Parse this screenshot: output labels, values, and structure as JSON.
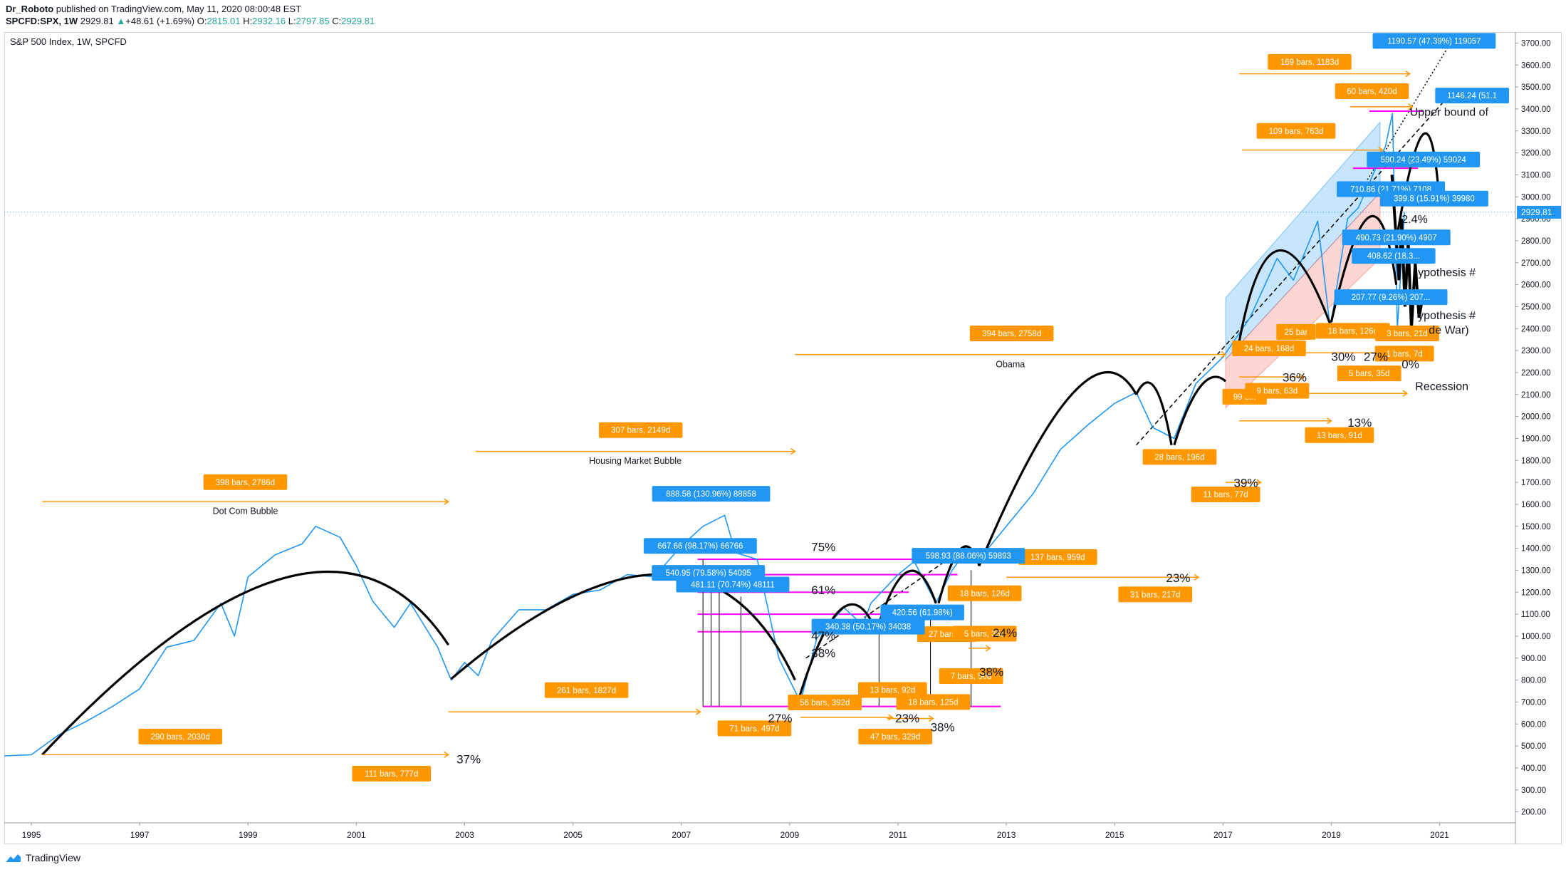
{
  "header": {
    "author": "Dr_Roboto",
    "published": "published on TradingView.com, May 11, 2020 08:00:48 EST",
    "symbol": "SPCFD:SPX, 1W",
    "price": "2929.81",
    "change": "+48.61 (+1.69%)",
    "ohlc_o_label": "O:",
    "ohlc_o": "2815.01",
    "ohlc_h_label": "H:",
    "ohlc_h": "2932.16",
    "ohlc_l_label": "L:",
    "ohlc_l": "2797.85",
    "ohlc_c_label": "C:",
    "ohlc_c": "2929.81"
  },
  "footer": {
    "brand": "TradingView"
  },
  "colors": {
    "price_line": "#2196f3",
    "orange": "#ff9800",
    "blue_label": "#2196f3",
    "magenta": "#ff00ff",
    "curve": "#000000"
  },
  "chart_data": {
    "type": "line",
    "title": "S&P 500 Index, 1W, SPCFD",
    "ylim": [
      150,
      3750
    ],
    "xlim": [
      1994.5,
      2022.4
    ],
    "x_ticks": [
      "1995",
      "1997",
      "1999",
      "2001",
      "2003",
      "2005",
      "2007",
      "2009",
      "2011",
      "2013",
      "2015",
      "2017",
      "2019",
      "2021"
    ],
    "y_ticks": [
      "200.00",
      "300.00",
      "400.00",
      "500.00",
      "600.00",
      "700.00",
      "800.00",
      "900.00",
      "1000.00",
      "1100.00",
      "1200.00",
      "1300.00",
      "1400.00",
      "1500.00",
      "1600.00",
      "1700.00",
      "1800.00",
      "1900.00",
      "2000.00",
      "2100.00",
      "2200.00",
      "2300.00",
      "2400.00",
      "2500.00",
      "2600.00",
      "2700.00",
      "2800.00",
      "2900.00",
      "3000.00",
      "3100.00",
      "3200.00",
      "3300.00",
      "3400.00",
      "3500.00",
      "3600.00",
      "3700.00"
    ],
    "last_price": {
      "y": 2929.81,
      "label": "2929.81"
    },
    "series": [
      {
        "x": [
          1994.5,
          1995.0,
          1995.5,
          1996.0,
          1996.5,
          1997.0,
          1997.5,
          1998.0,
          1998.5,
          1998.75,
          1999.0,
          1999.5,
          2000.0,
          2000.25,
          2000.7,
          2001.0,
          2001.3,
          2001.7,
          2002.0,
          2002.5,
          2002.75,
          2003.0,
          2003.25,
          2003.5,
          2004.0,
          2004.5,
          2005.0,
          2005.5,
          2006.0,
          2006.5,
          2007.0,
          2007.4,
          2007.8,
          2008.0,
          2008.4,
          2008.8,
          2009.0,
          2009.2,
          2009.5,
          2010.0,
          2010.35,
          2010.5,
          2011.0,
          2011.3,
          2011.7,
          2012.0,
          2012.3,
          2012.5,
          2013.0,
          2013.5,
          2014.0,
          2014.5,
          2015.0,
          2015.4,
          2015.7,
          2016.1,
          2016.5,
          2017.0,
          2017.5,
          2018.0,
          2018.3,
          2018.75,
          2018.98,
          2019.3,
          2019.5,
          2020.0,
          2020.13,
          2020.22,
          2020.35
        ],
        "y": [
          455,
          460,
          550,
          610,
          680,
          760,
          950,
          980,
          1150,
          1000,
          1270,
          1370,
          1420,
          1500,
          1450,
          1320,
          1160,
          1040,
          1150,
          950,
          800,
          880,
          820,
          980,
          1120,
          1120,
          1190,
          1210,
          1280,
          1270,
          1410,
          1500,
          1550,
          1380,
          1350,
          900,
          800,
          700,
          990,
          1130,
          1050,
          1150,
          1280,
          1340,
          1150,
          1300,
          1400,
          1350,
          1500,
          1650,
          1850,
          1960,
          2060,
          2110,
          1950,
          1900,
          2150,
          2270,
          2450,
          2720,
          2620,
          2890,
          2400,
          2900,
          2950,
          3230,
          3380,
          2400,
          2930
        ]
      }
    ],
    "period_labels": [
      {
        "text": "Dot Com Bubble",
        "x": 1995.2,
        "x2": 2002.7,
        "y": 1614
      },
      {
        "text": "Housing Market Bubble",
        "x": 2003.2,
        "x2": 2009.1,
        "y": 1843
      },
      {
        "text": "Obama",
        "x": 2009.1,
        "x2": 2017.05,
        "y": 2283
      }
    ],
    "bars_labels": [
      {
        "text": "398 bars, 2786d",
        "x": 1998.95,
        "y": 1701
      },
      {
        "text": "307 bars, 2149d",
        "x": 2006.25,
        "y": 1938
      },
      {
        "text": "394 bars, 2758d",
        "x": 2013.1,
        "y": 2378
      },
      {
        "text": "290 bars, 2030d",
        "x": 1997.75,
        "y": 543
      },
      {
        "text": "111 bars, 777d",
        "x": 2001.65,
        "y": 374
      },
      {
        "text": "261 bars, 1827d",
        "x": 2005.25,
        "y": 754
      },
      {
        "text": "56 bars, 392d",
        "x": 2009.65,
        "y": 698
      },
      {
        "text": "71 bars, 497d",
        "x": 2008.35,
        "y": 580
      },
      {
        "text": "13 bars, 92d",
        "x": 2010.9,
        "y": 755
      },
      {
        "text": "18 bars, 125d",
        "x": 2011.65,
        "y": 700
      },
      {
        "text": "47 bars, 329d",
        "x": 2010.95,
        "y": 543
      },
      {
        "text": "7 bars, 50d",
        "x": 2012.35,
        "y": 818
      },
      {
        "text": "27 bars, 1",
        "x": 2011.9,
        "y": 1009
      },
      {
        "text": "5 bars, 35d",
        "x": 2012.6,
        "y": 1011
      },
      {
        "text": "18 bars, 126d",
        "x": 2012.6,
        "y": 1195
      },
      {
        "text": "137 bars, 959d",
        "x": 2013.95,
        "y": 1360
      },
      {
        "text": "31 bars, 217d",
        "x": 2015.75,
        "y": 1190
      },
      {
        "text": "28 bars, 196d",
        "x": 2016.2,
        "y": 1816
      },
      {
        "text": "11 bars, 77d",
        "x": 2017.05,
        "y": 1645
      },
      {
        "text": "13 bars, 91d",
        "x": 2019.15,
        "y": 1915
      },
      {
        "text": "99 b...",
        "x": 2017.4,
        "y": 2090
      },
      {
        "text": "9 bars, 63d",
        "x": 2018.0,
        "y": 2117
      },
      {
        "text": "24 bars, 168d",
        "x": 2017.85,
        "y": 2310
      },
      {
        "text": "25 bar",
        "x": 2018.35,
        "y": 2385
      },
      {
        "text": "18 bars, 126d",
        "x": 2019.4,
        "y": 2390
      },
      {
        "text": "5 bars, 35d",
        "x": 2019.7,
        "y": 2196
      },
      {
        "text": "1 bars, 7d",
        "x": 2020.35,
        "y": 2286
      },
      {
        "text": "3 bars, 21d",
        "x": 2020.4,
        "y": 2378
      },
      {
        "text": "109 bars, 763d",
        "x": 2018.35,
        "y": 3300
      },
      {
        "text": "169 bars, 1183d",
        "x": 2018.6,
        "y": 3614
      },
      {
        "text": "60 bars, 420d",
        "x": 2019.75,
        "y": 3481
      }
    ],
    "blue_labels": [
      {
        "text": "888.58 (130.96%) 88858",
        "x": 2007.55,
        "y": 1648
      },
      {
        "text": "667.66 (98.17%) 66766",
        "x": 2007.35,
        "y": 1411
      },
      {
        "text": "540.95 (79.58%) 54095",
        "x": 2007.5,
        "y": 1288
      },
      {
        "text": "481.11 (70.74%) 48111",
        "x": 2007.95,
        "y": 1235
      },
      {
        "text": "340.38 (50.17%) 34038",
        "x": 2010.45,
        "y": 1043
      },
      {
        "text": "420.56 (61.98%)",
        "x": 2011.45,
        "y": 1108
      },
      {
        "text": "598.93 (88.06%) 59893",
        "x": 2012.3,
        "y": 1366
      },
      {
        "text": "1190.57 (47.39%) 119057",
        "x": 2020.9,
        "y": 3710
      },
      {
        "text": "1146.24 (51.1",
        "x": 2021.6,
        "y": 3461
      },
      {
        "text": "590.24 (23.49%) 59024",
        "x": 2020.7,
        "y": 3170
      },
      {
        "text": "710.86 (21.71%) 7108",
        "x": 2020.1,
        "y": 3035
      },
      {
        "text": "399.8 (15.91%) 39980",
        "x": 2020.9,
        "y": 2992
      },
      {
        "text": "490.73 (21.90%) 4907",
        "x": 2020.2,
        "y": 2815
      },
      {
        "text": "408.62 (18.3...",
        "x": 2020.15,
        "y": 2731
      },
      {
        "text": "207.77 (9.26%) 207...",
        "x": 2020.1,
        "y": 2543
      }
    ],
    "percent_labels": [
      {
        "text": "37%",
        "x": 2002.85,
        "y": 440
      },
      {
        "text": "75%",
        "x": 2009.4,
        "y": 1406
      },
      {
        "text": "61%",
        "x": 2009.4,
        "y": 1211
      },
      {
        "text": "47%",
        "x": 2009.4,
        "y": 1003
      },
      {
        "text": "38%",
        "x": 2009.4,
        "y": 924
      },
      {
        "text": "27%",
        "x": 2008.6,
        "y": 627
      },
      {
        "text": "23%",
        "x": 2010.95,
        "y": 627
      },
      {
        "text": "38%",
        "x": 2011.6,
        "y": 587
      },
      {
        "text": "24%",
        "x": 2012.75,
        "y": 1016
      },
      {
        "text": "38%",
        "x": 2012.5,
        "y": 837
      },
      {
        "text": "23%",
        "x": 2015.95,
        "y": 1265
      },
      {
        "text": "39%",
        "x": 2017.2,
        "y": 1698
      },
      {
        "text": "13%",
        "x": 2019.3,
        "y": 1972
      },
      {
        "text": "36%",
        "x": 2018.1,
        "y": 2179
      },
      {
        "text": "30%",
        "x": 2019.0,
        "y": 2272
      },
      {
        "text": "27%",
        "x": 2019.6,
        "y": 2272
      },
      {
        "text": "0%",
        "x": 2020.3,
        "y": 2238
      }
    ],
    "annotations": [
      {
        "text": "Upper bound of",
        "x": 2020.45,
        "y": 3389
      },
      {
        "text": "ypothesis #",
        "x": 2020.6,
        "y": 2659
      },
      {
        "text": "ypothesis #",
        "x": 2020.6,
        "y": 2462
      },
      {
        "text": "de War)",
        "x": 2020.8,
        "y": 2396
      },
      {
        "text": "Recession",
        "x": 2020.55,
        "y": 2140
      },
      {
        "text": "2.4%",
        "x": 2020.3,
        "y": 2900
      }
    ]
  }
}
